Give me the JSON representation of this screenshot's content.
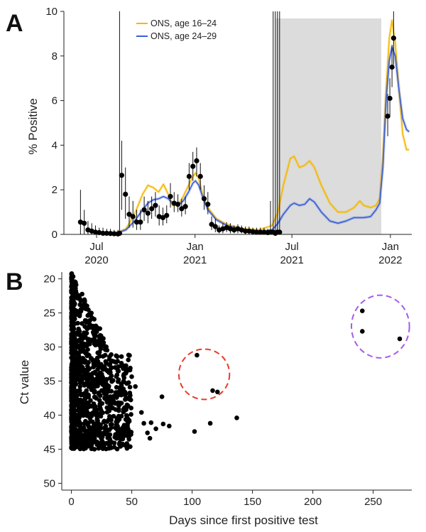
{
  "chart_data": [
    {
      "panel_label": "A",
      "type": "line",
      "ylabel": "% Positive",
      "ylim": [
        0,
        10
      ],
      "yticks": [
        "0",
        "2",
        "4",
        "6",
        "8",
        "10"
      ],
      "xticks": [
        {
          "date": "2020-07-01",
          "top": "Jul",
          "bottom": "2020"
        },
        {
          "date": "2021-01-01",
          "top": "Jan",
          "bottom": "2021"
        },
        {
          "date": "2021-07-01",
          "top": "Jul",
          "bottom": "2021"
        },
        {
          "date": "2022-01-01",
          "top": "Jan",
          "bottom": "2022"
        }
      ],
      "xlim": [
        "2020-05-01",
        "2022-02-10"
      ],
      "shaded_period": [
        "2021-06-01",
        "2021-12-15"
      ],
      "legend_position": "top-left",
      "series": [
        {
          "name": "ONS, age 16–24",
          "color": "#f5b800",
          "points": [
            [
              "2020-08-01",
              0.0
            ],
            [
              "2020-08-25",
              0.25
            ],
            [
              "2020-09-10",
              0.9
            ],
            [
              "2020-09-25",
              1.8
            ],
            [
              "2020-10-05",
              2.2
            ],
            [
              "2020-10-15",
              2.1
            ],
            [
              "2020-10-25",
              1.9
            ],
            [
              "2020-11-03",
              2.25
            ],
            [
              "2020-11-12",
              1.8
            ],
            [
              "2020-11-20",
              1.3
            ],
            [
              "2020-11-30",
              1.3
            ],
            [
              "2020-12-10",
              1.7
            ],
            [
              "2020-12-20",
              2.2
            ],
            [
              "2020-12-28",
              2.6
            ],
            [
              "2021-01-02",
              2.75
            ],
            [
              "2021-01-08",
              2.5
            ],
            [
              "2021-01-15",
              1.8
            ],
            [
              "2021-01-25",
              1.2
            ],
            [
              "2021-02-10",
              0.7
            ],
            [
              "2021-03-01",
              0.45
            ],
            [
              "2021-04-01",
              0.25
            ],
            [
              "2021-05-01",
              0.2
            ],
            [
              "2021-05-25",
              0.4
            ],
            [
              "2021-06-05",
              1.0
            ],
            [
              "2021-06-15",
              2.2
            ],
            [
              "2021-06-28",
              3.4
            ],
            [
              "2021-07-05",
              3.5
            ],
            [
              "2021-07-15",
              3.0
            ],
            [
              "2021-07-25",
              3.1
            ],
            [
              "2021-08-03",
              3.3
            ],
            [
              "2021-08-12",
              3.0
            ],
            [
              "2021-08-25",
              2.2
            ],
            [
              "2021-09-10",
              1.4
            ],
            [
              "2021-09-25",
              1.0
            ],
            [
              "2021-10-10",
              1.0
            ],
            [
              "2021-10-25",
              1.2
            ],
            [
              "2021-11-05",
              1.5
            ],
            [
              "2021-11-12",
              1.3
            ],
            [
              "2021-11-25",
              1.2
            ],
            [
              "2021-12-05",
              1.3
            ],
            [
              "2021-12-12",
              1.6
            ],
            [
              "2021-12-18",
              3.5
            ],
            [
              "2021-12-24",
              6.5
            ],
            [
              "2021-12-30",
              8.8
            ],
            [
              "2022-01-04",
              9.6
            ],
            [
              "2022-01-10",
              8.6
            ],
            [
              "2022-01-17",
              6.5
            ],
            [
              "2022-01-24",
              4.5
            ],
            [
              "2022-01-31",
              3.8
            ],
            [
              "2022-02-05",
              3.8
            ]
          ]
        },
        {
          "name": "ONS, age 24–29",
          "color": "#3a5fd8",
          "points": [
            [
              "2020-08-01",
              0.0
            ],
            [
              "2020-08-25",
              0.2
            ],
            [
              "2020-09-10",
              0.6
            ],
            [
              "2020-09-25",
              1.1
            ],
            [
              "2020-10-05",
              1.4
            ],
            [
              "2020-10-15",
              1.55
            ],
            [
              "2020-10-25",
              1.6
            ],
            [
              "2020-11-03",
              1.7
            ],
            [
              "2020-11-12",
              1.6
            ],
            [
              "2020-11-20",
              1.4
            ],
            [
              "2020-11-30",
              1.3
            ],
            [
              "2020-12-10",
              1.5
            ],
            [
              "2020-12-20",
              1.9
            ],
            [
              "2020-12-28",
              2.3
            ],
            [
              "2021-01-02",
              2.4
            ],
            [
              "2021-01-08",
              2.2
            ],
            [
              "2021-01-15",
              1.7
            ],
            [
              "2021-01-25",
              1.1
            ],
            [
              "2021-02-10",
              0.65
            ],
            [
              "2021-03-01",
              0.4
            ],
            [
              "2021-04-01",
              0.2
            ],
            [
              "2021-05-01",
              0.12
            ],
            [
              "2021-05-25",
              0.2
            ],
            [
              "2021-06-05",
              0.5
            ],
            [
              "2021-06-15",
              0.9
            ],
            [
              "2021-06-28",
              1.3
            ],
            [
              "2021-07-05",
              1.4
            ],
            [
              "2021-07-15",
              1.3
            ],
            [
              "2021-07-25",
              1.35
            ],
            [
              "2021-08-03",
              1.6
            ],
            [
              "2021-08-12",
              1.45
            ],
            [
              "2021-08-25",
              1.0
            ],
            [
              "2021-09-10",
              0.6
            ],
            [
              "2021-09-25",
              0.5
            ],
            [
              "2021-10-10",
              0.6
            ],
            [
              "2021-10-25",
              0.75
            ],
            [
              "2021-11-05",
              0.75
            ],
            [
              "2021-11-12",
              0.75
            ],
            [
              "2021-11-25",
              0.8
            ],
            [
              "2021-12-05",
              1.1
            ],
            [
              "2021-12-12",
              1.4
            ],
            [
              "2021-12-18",
              3.0
            ],
            [
              "2021-12-24",
              6.0
            ],
            [
              "2021-12-30",
              7.8
            ],
            [
              "2022-01-04",
              8.4
            ],
            [
              "2022-01-10",
              8.0
            ],
            [
              "2022-01-17",
              6.5
            ],
            [
              "2022-01-24",
              5.2
            ],
            [
              "2022-01-31",
              4.7
            ],
            [
              "2022-02-05",
              4.6
            ]
          ]
        },
        {
          "type": "scatter",
          "color": "#000000",
          "points": [
            {
              "x": "2020-06-01",
              "y": 0.55,
              "lo": 0.0,
              "hi": 2.0
            },
            {
              "x": "2020-06-08",
              "y": 0.5,
              "lo": 0.0,
              "hi": 1.1
            },
            {
              "x": "2020-06-15",
              "y": 0.2,
              "lo": 0.0,
              "hi": 0.6
            },
            {
              "x": "2020-06-22",
              "y": 0.15,
              "lo": 0.0,
              "hi": 0.5
            },
            {
              "x": "2020-06-29",
              "y": 0.1,
              "lo": 0.0,
              "hi": 0.4
            },
            {
              "x": "2020-07-06",
              "y": 0.08,
              "lo": 0.0,
              "hi": 0.3
            },
            {
              "x": "2020-07-13",
              "y": 0.05,
              "lo": 0.0,
              "hi": 0.3
            },
            {
              "x": "2020-07-20",
              "y": 0.05,
              "lo": 0.0,
              "hi": 0.25
            },
            {
              "x": "2020-07-27",
              "y": 0.04,
              "lo": 0.0,
              "hi": 0.25
            },
            {
              "x": "2020-08-03",
              "y": 0.03,
              "lo": 0.0,
              "hi": 0.2
            },
            {
              "x": "2020-08-10",
              "y": 0.02,
              "lo": 0.0,
              "hi": 0.2
            },
            {
              "x": "2020-08-13",
              "y": 0.05,
              "lo": 0.0,
              "hi": 10.0
            },
            {
              "x": "2020-08-17",
              "y": 2.65,
              "lo": 1.1,
              "hi": 4.2
            },
            {
              "x": "2020-08-24",
              "y": 1.8,
              "lo": 0.7,
              "hi": 3.0
            },
            {
              "x": "2020-08-31",
              "y": 0.9,
              "lo": 0.3,
              "hi": 1.7
            },
            {
              "x": "2020-09-07",
              "y": 0.8,
              "lo": 0.3,
              "hi": 1.5
            },
            {
              "x": "2020-09-14",
              "y": 0.55,
              "lo": 0.2,
              "hi": 1.1
            },
            {
              "x": "2020-09-21",
              "y": 0.55,
              "lo": 0.2,
              "hi": 1.1
            },
            {
              "x": "2020-09-28",
              "y": 1.1,
              "lo": 0.6,
              "hi": 1.7
            },
            {
              "x": "2020-10-05",
              "y": 0.95,
              "lo": 0.5,
              "hi": 1.5
            },
            {
              "x": "2020-10-12",
              "y": 1.15,
              "lo": 0.7,
              "hi": 1.7
            },
            {
              "x": "2020-10-19",
              "y": 1.3,
              "lo": 0.8,
              "hi": 1.9
            },
            {
              "x": "2020-10-26",
              "y": 0.8,
              "lo": 0.4,
              "hi": 1.3
            },
            {
              "x": "2020-11-02",
              "y": 0.75,
              "lo": 0.4,
              "hi": 1.2
            },
            {
              "x": "2020-11-09",
              "y": 0.85,
              "lo": 0.5,
              "hi": 1.3
            },
            {
              "x": "2020-11-16",
              "y": 1.7,
              "lo": 1.2,
              "hi": 2.3
            },
            {
              "x": "2020-11-23",
              "y": 1.4,
              "lo": 1.0,
              "hi": 1.9
            },
            {
              "x": "2020-11-30",
              "y": 1.35,
              "lo": 1.0,
              "hi": 1.8
            },
            {
              "x": "2020-12-07",
              "y": 1.15,
              "lo": 0.8,
              "hi": 1.6
            },
            {
              "x": "2020-12-14",
              "y": 1.25,
              "lo": 0.9,
              "hi": 1.7
            },
            {
              "x": "2020-12-21",
              "y": 2.6,
              "lo": 2.0,
              "hi": 3.2
            },
            {
              "x": "2020-12-28",
              "y": 3.05,
              "lo": 2.4,
              "hi": 3.7
            },
            {
              "x": "2021-01-04",
              "y": 3.3,
              "lo": 2.6,
              "hi": 3.9
            },
            {
              "x": "2021-01-11",
              "y": 2.6,
              "lo": 2.0,
              "hi": 3.2
            },
            {
              "x": "2021-01-18",
              "y": 1.6,
              "lo": 1.1,
              "hi": 2.2
            },
            {
              "x": "2021-01-25",
              "y": 1.35,
              "lo": 0.9,
              "hi": 1.9
            },
            {
              "x": "2021-02-01",
              "y": 0.45,
              "lo": 0.2,
              "hi": 0.8
            },
            {
              "x": "2021-02-08",
              "y": 0.35,
              "lo": 0.1,
              "hi": 0.7
            },
            {
              "x": "2021-02-15",
              "y": 0.2,
              "lo": 0.05,
              "hi": 0.4
            },
            {
              "x": "2021-02-22",
              "y": 0.25,
              "lo": 0.05,
              "hi": 0.5
            },
            {
              "x": "2021-03-01",
              "y": 0.3,
              "lo": 0.1,
              "hi": 0.55
            },
            {
              "x": "2021-03-08",
              "y": 0.25,
              "lo": 0.05,
              "hi": 0.5
            },
            {
              "x": "2021-03-15",
              "y": 0.2,
              "lo": 0.05,
              "hi": 0.4
            },
            {
              "x": "2021-03-22",
              "y": 0.25,
              "lo": 0.05,
              "hi": 0.45
            },
            {
              "x": "2021-03-29",
              "y": 0.2,
              "lo": 0.05,
              "hi": 0.4
            },
            {
              "x": "2021-04-05",
              "y": 0.15,
              "lo": 0.0,
              "hi": 0.35
            },
            {
              "x": "2021-04-12",
              "y": 0.15,
              "lo": 0.0,
              "hi": 0.35
            },
            {
              "x": "2021-04-19",
              "y": 0.12,
              "lo": 0.0,
              "hi": 0.3
            },
            {
              "x": "2021-04-26",
              "y": 0.1,
              "lo": 0.0,
              "hi": 0.3
            },
            {
              "x": "2021-05-03",
              "y": 0.1,
              "lo": 0.0,
              "hi": 0.3
            },
            {
              "x": "2021-05-10",
              "y": 0.1,
              "lo": 0.0,
              "hi": 0.3
            },
            {
              "x": "2021-05-17",
              "y": 0.08,
              "lo": 0.0,
              "hi": 0.25
            },
            {
              "x": "2021-05-22",
              "y": 0.1,
              "lo": 0.0,
              "hi": 1.5
            },
            {
              "x": "2021-05-27",
              "y": 0.1,
              "lo": 0.0,
              "hi": 10.0
            },
            {
              "x": "2021-05-31",
              "y": 0.05,
              "lo": 0.0,
              "hi": 10.0
            },
            {
              "x": "2021-06-04",
              "y": 0.1,
              "lo": 0.0,
              "hi": 10.0
            },
            {
              "x": "2021-06-08",
              "y": 0.1,
              "lo": 0.0,
              "hi": 10.0
            },
            {
              "x": "2021-12-27",
              "y": 5.3,
              "lo": 4.4,
              "hi": 6.3
            },
            {
              "x": "2021-12-31",
              "y": 6.1,
              "lo": 5.3,
              "hi": 7.0
            },
            {
              "x": "2022-01-04",
              "y": 7.5,
              "lo": 6.6,
              "hi": 8.5
            },
            {
              "x": "2022-01-07",
              "y": 8.8,
              "lo": 7.6,
              "hi": 10.0
            }
          ]
        }
      ]
    },
    {
      "panel_label": "B",
      "type": "scatter",
      "xlabel": "Days since first positive test",
      "ylabel": "Ct value",
      "xlim": [
        -8,
        282
      ],
      "ylim": [
        51,
        19
      ],
      "y_reversed": true,
      "xticks": [
        "0",
        "50",
        "100",
        "150",
        "200",
        "250"
      ],
      "yticks": [
        "20",
        "25",
        "30",
        "35",
        "40",
        "45",
        "50"
      ],
      "highlight_circles": [
        {
          "cx": 110,
          "cy": 34.0,
          "rx": 21,
          "ry": 3.7,
          "color": "#e83a2e"
        },
        {
          "cx": 256,
          "cy": 27.0,
          "rx": 24,
          "ry": 4.6,
          "color": "#a45ce8"
        }
      ],
      "isolated_points": [
        [
          53,
          35.8
        ],
        [
          58,
          39.6
        ],
        [
          60,
          41.2
        ],
        [
          63,
          42.6
        ],
        [
          65,
          43.4
        ],
        [
          66,
          41.1
        ],
        [
          70,
          42.0
        ],
        [
          75,
          37.3
        ],
        [
          76,
          41.3
        ],
        [
          81,
          41.6
        ],
        [
          102,
          42.4
        ],
        [
          115,
          41.2
        ],
        [
          137,
          40.4
        ],
        [
          28,
          31.2
        ],
        [
          104,
          31.2
        ],
        [
          117,
          36.4
        ],
        [
          121,
          36.6
        ],
        [
          241,
          24.7
        ],
        [
          241,
          27.7
        ],
        [
          272,
          28.8
        ]
      ],
      "cloud": {
        "x_range": [
          0,
          50
        ],
        "y_range": [
          19,
          45
        ],
        "point_count": 1200,
        "density": "highest near day 0, thinning with days since first positive test"
      }
    }
  ]
}
